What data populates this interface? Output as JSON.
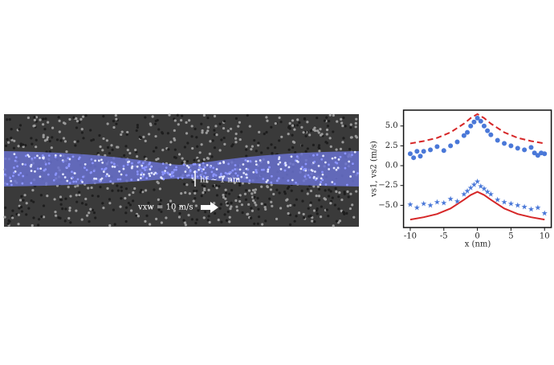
{
  "chart_data": {
    "type": "line",
    "x_label": "x (nm)",
    "y_label": "vs1, vs2 (m/s)",
    "annotations": [
      "hf ~ 1 nm",
      "vxw = 10 m/s"
    ],
    "xlim": [
      -11,
      11
    ],
    "ylim": [
      -7.8,
      7.0
    ],
    "xticks": [
      -10,
      -5,
      0,
      5,
      10
    ],
    "yticks": [
      {
        "value": 5,
        "label": "5.0"
      },
      {
        "value": 2.5,
        "label": "2.5"
      },
      {
        "value": 0,
        "label": "0.0"
      },
      {
        "value": -2.5,
        "label": "−2.5"
      },
      {
        "value": -5,
        "label": "−5.0"
      }
    ],
    "series": [
      {
        "style": "dashed",
        "color": "#d62728",
        "x": [
          -10,
          -8,
          -6,
          -4,
          -2,
          -1,
          0,
          1,
          2,
          4,
          6,
          8,
          10
        ],
        "values": [
          2.8,
          3.1,
          3.5,
          4.2,
          5.3,
          6.0,
          6.5,
          6.0,
          5.3,
          4.2,
          3.5,
          3.1,
          2.8
        ]
      },
      {
        "style": "solid",
        "color": "#d62728",
        "x": [
          -10,
          -8,
          -6,
          -4,
          -2,
          -1,
          0,
          1,
          2,
          4,
          6,
          8,
          10
        ],
        "values": [
          -6.8,
          -6.5,
          -6.1,
          -5.4,
          -4.3,
          -3.7,
          -3.3,
          -3.7,
          -4.3,
          -5.4,
          -6.1,
          -6.5,
          -6.8
        ]
      },
      {
        "style": "circle",
        "color": "#4a78d8",
        "x": [
          -10,
          -9.5,
          -9,
          -8.5,
          -8,
          -7,
          -6,
          -5,
          -4,
          -3,
          -2,
          -1.5,
          -1,
          -0.5,
          0,
          0.5,
          1,
          1.5,
          2,
          3,
          4,
          5,
          6,
          7,
          8,
          8.5,
          9,
          9.5,
          10
        ],
        "values": [
          1.5,
          1.0,
          1.8,
          1.2,
          1.8,
          2.0,
          2.4,
          1.9,
          2.5,
          3.0,
          3.8,
          4.2,
          5.0,
          5.5,
          6.0,
          5.6,
          5.0,
          4.4,
          3.9,
          3.2,
          2.8,
          2.5,
          2.2,
          2.0,
          2.3,
          1.6,
          1.3,
          1.6,
          1.5
        ]
      },
      {
        "style": "star",
        "color": "#4a78d8",
        "x": [
          -10,
          -9,
          -8,
          -7,
          -6,
          -5,
          -4,
          -3,
          -2,
          -1.5,
          -1,
          -0.5,
          0,
          0.5,
          1,
          1.5,
          2,
          3,
          4,
          5,
          6,
          7,
          8,
          9,
          10
        ],
        "values": [
          -4.9,
          -5.3,
          -4.8,
          -5.0,
          -4.6,
          -4.7,
          -4.2,
          -4.5,
          -3.6,
          -3.2,
          -2.8,
          -2.4,
          -2.0,
          -2.6,
          -2.9,
          -3.3,
          -3.6,
          -4.3,
          -4.6,
          -4.8,
          -5.0,
          -5.2,
          -5.5,
          -5.3,
          -6.0
        ]
      }
    ]
  }
}
